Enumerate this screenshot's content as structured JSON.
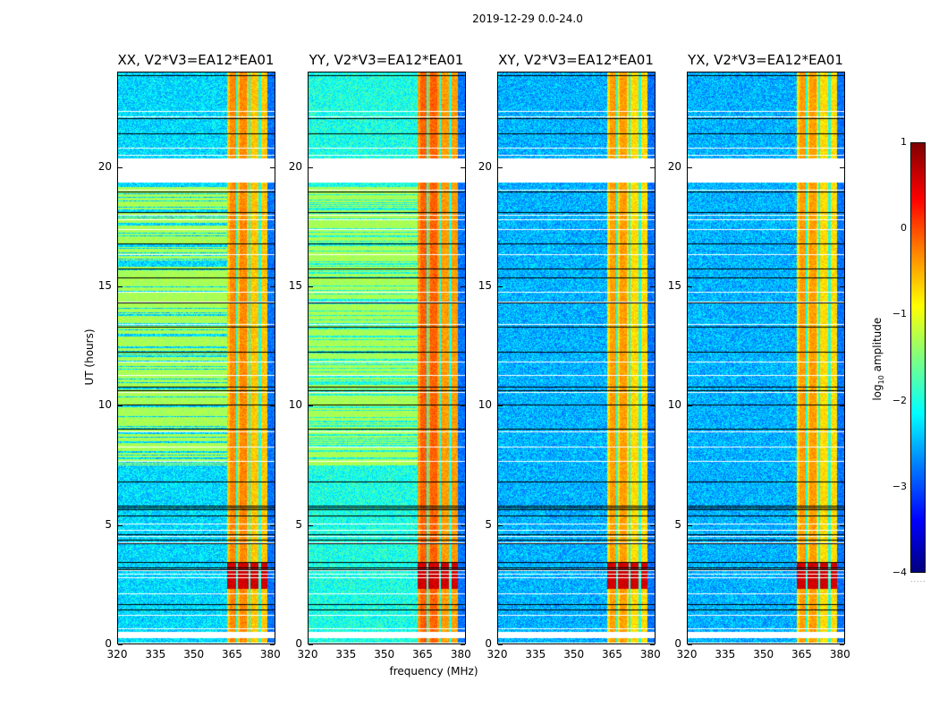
{
  "chart_data": {
    "type": "heatmap",
    "title": "2019-12-29 0.0-24.0",
    "xlabel": "frequency (MHz)",
    "ylabel": "UT (hours)",
    "xlim": [
      320,
      382
    ],
    "ylim": [
      0,
      24
    ],
    "x_ticks": [
      "320",
      "335",
      "350",
      "365",
      "380"
    ],
    "y_ticks": [
      "0",
      "5",
      "10",
      "15",
      "20"
    ],
    "panels": [
      {
        "title": "XX, V2*V3=EA12*EA01",
        "pol": "XX",
        "base_level": -2.3,
        "band_level": -0.6
      },
      {
        "title": "YY, V2*V3=EA12*EA01",
        "pol": "YY",
        "base_level": -2.0,
        "band_level": -0.4
      },
      {
        "title": "XY, V2*V3=EA12*EA01",
        "pol": "XY",
        "base_level": -2.5,
        "band_level": -0.7
      },
      {
        "title": "YX, V2*V3=EA12*EA01",
        "pol": "YX",
        "base_level": -2.5,
        "band_level": -0.7
      }
    ],
    "colorbar": {
      "label": "log10 amplitude",
      "label_main": "log",
      "label_sub": "10",
      "label_rest": " amplitude",
      "range": [
        -4,
        1
      ],
      "ticks": [
        "1",
        "0",
        "−1",
        "−2",
        "−3",
        "−4"
      ],
      "colormap": "jet"
    },
    "rfi_band_MHz": [
      363,
      379
    ],
    "flagged_gap_hours": [
      [
        19.4,
        20.4
      ],
      [
        0.25,
        0.5
      ]
    ]
  }
}
